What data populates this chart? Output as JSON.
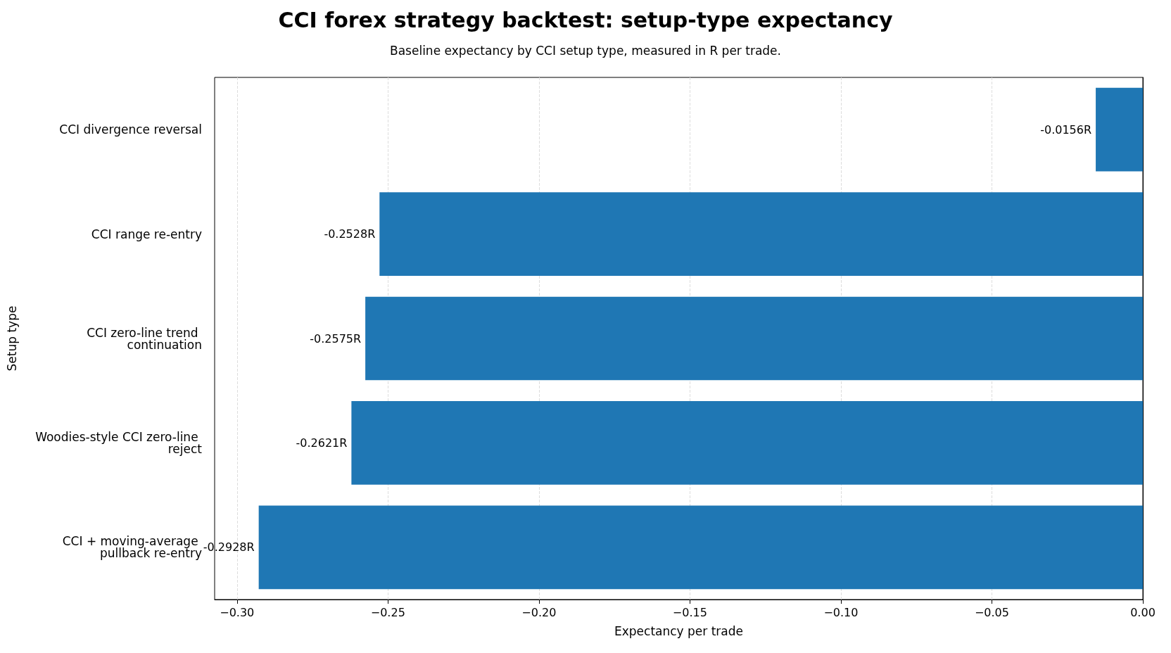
{
  "chart_data": {
    "type": "bar",
    "orientation": "horizontal",
    "title": "CCI forex strategy backtest: setup-type expectancy",
    "subtitle": "Baseline expectancy by CCI setup type, measured in R per trade.",
    "xlabel": "Expectancy per trade",
    "ylabel": "Setup type",
    "categories": [
      "CCI divergence reversal",
      "CCI range re-entry",
      "CCI zero-line trend continuation",
      "Woodies-style CCI zero-line reject",
      "CCI + moving-average pullback re-entry"
    ],
    "values": [
      -0.0156,
      -0.2528,
      -0.2575,
      -0.2621,
      -0.2928
    ],
    "value_labels": [
      "-0.0156R",
      "-0.2528R",
      "-0.2575R",
      "-0.2621R",
      "-0.2928R"
    ],
    "color": "#1f77b4",
    "xlim": [
      -0.3074,
      0
    ],
    "xticks": [
      {
        "value": -0.3,
        "label": "−0.30"
      },
      {
        "value": -0.25,
        "label": "−0.25"
      },
      {
        "value": -0.2,
        "label": "−0.20"
      },
      {
        "value": -0.15,
        "label": "−0.15"
      },
      {
        "value": -0.1,
        "label": "−0.10"
      },
      {
        "value": -0.05,
        "label": "−0.05"
      },
      {
        "value": 0,
        "label": "0.00"
      }
    ],
    "grid": "x"
  }
}
